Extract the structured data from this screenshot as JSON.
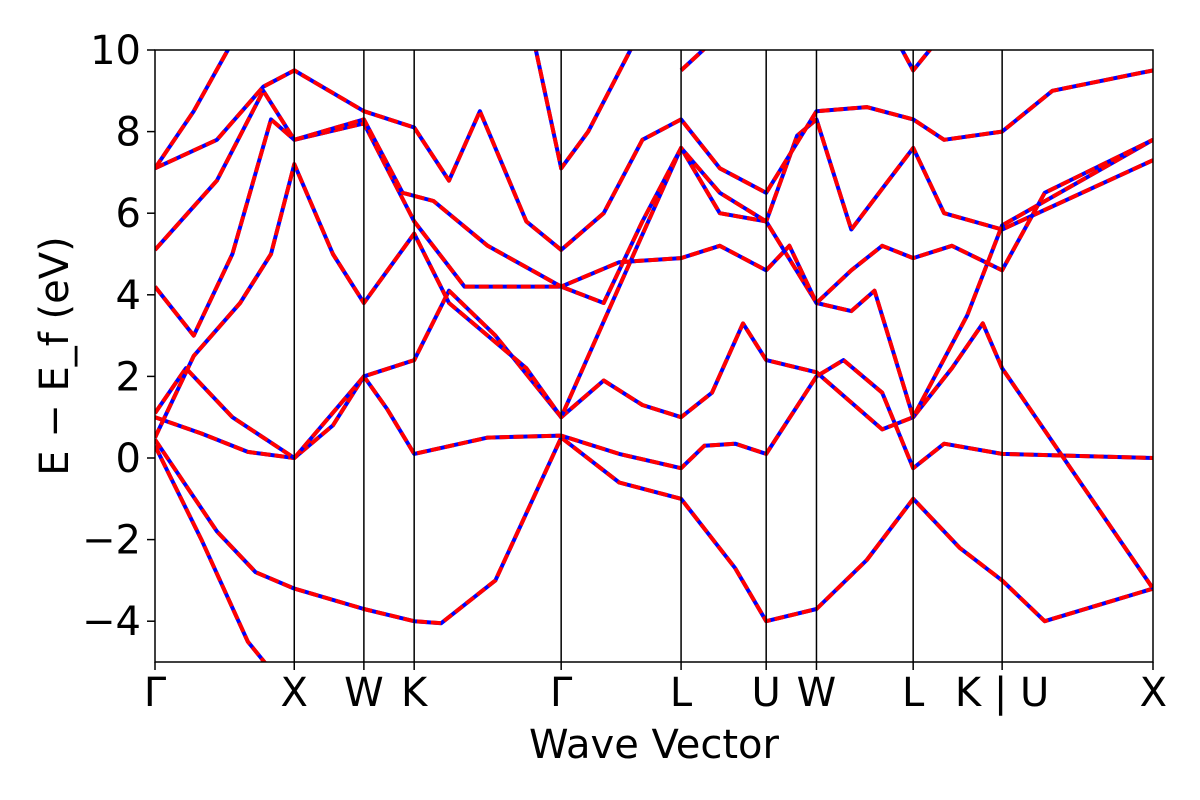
{
  "chart_data": {
    "type": "line",
    "xlabel": "Wave Vector",
    "ylabel": "E − E_f (eV)",
    "ylim": [
      -5,
      10
    ],
    "yticks": [
      -4,
      -2,
      0,
      2,
      4,
      6,
      8,
      10
    ],
    "ytick_labels": [
      "−4",
      "−2",
      "0",
      "2",
      "4",
      "6",
      "8",
      "10"
    ],
    "xlim": [
      0,
      12.9
    ],
    "kpoints": [
      {
        "label": "Γ",
        "x": 0.0
      },
      {
        "label": "X",
        "x": 1.8
      },
      {
        "label": "W",
        "x": 2.7
      },
      {
        "label": "K",
        "x": 3.35
      },
      {
        "label": "Γ",
        "x": 5.25
      },
      {
        "label": "L",
        "x": 6.8
      },
      {
        "label": "U",
        "x": 7.9
      },
      {
        "label": "W",
        "x": 8.55
      },
      {
        "label": "L",
        "x": 9.8
      },
      {
        "label": "K | U",
        "x": 10.95
      },
      {
        "label": "X",
        "x": 12.9
      }
    ],
    "colors": {
      "reference": "#0000ff",
      "overlay": "#ff0000",
      "vlines": "#000000"
    },
    "grid": false,
    "series": [
      {
        "values": [
          [
            0,
            0.3
          ],
          [
            0.6,
            -2.0
          ],
          [
            1.2,
            -4.5
          ],
          [
            1.5,
            -5.2
          ]
        ]
      },
      {
        "values": [
          [
            0,
            0.45
          ],
          [
            0.8,
            -1.8
          ],
          [
            1.3,
            -2.8
          ],
          [
            1.8,
            -3.2
          ],
          [
            2.7,
            -3.7
          ],
          [
            3.35,
            -4.0
          ],
          [
            3.7,
            -4.05
          ],
          [
            4.4,
            -3.0
          ],
          [
            5.25,
            0.5
          ],
          [
            6.0,
            -0.6
          ],
          [
            6.8,
            -1.0
          ],
          [
            7.5,
            -2.7
          ],
          [
            7.9,
            -4.0
          ],
          [
            8.55,
            -3.7
          ],
          [
            9.2,
            -2.5
          ],
          [
            9.8,
            -1.0
          ],
          [
            10.4,
            -2.2
          ],
          [
            10.95,
            -3.0
          ],
          [
            11.5,
            -4.0
          ],
          [
            12.2,
            -3.6
          ],
          [
            12.9,
            -3.2
          ]
        ]
      },
      {
        "values": [
          [
            0,
            1.0
          ],
          [
            0.6,
            0.6
          ],
          [
            1.2,
            0.15
          ],
          [
            1.8,
            0.0
          ],
          [
            2.3,
            0.8
          ],
          [
            2.7,
            2.0
          ],
          [
            3.0,
            1.2
          ],
          [
            3.35,
            0.1
          ],
          [
            4.3,
            0.5
          ],
          [
            5.25,
            0.55
          ],
          [
            6.0,
            0.1
          ],
          [
            6.8,
            -0.25
          ],
          [
            7.1,
            0.3
          ],
          [
            7.5,
            0.35
          ],
          [
            7.9,
            0.1
          ],
          [
            8.55,
            2.0
          ],
          [
            8.9,
            2.4
          ],
          [
            9.4,
            1.6
          ],
          [
            9.8,
            -0.25
          ],
          [
            10.2,
            0.35
          ],
          [
            10.95,
            0.1
          ],
          [
            12.9,
            0.0
          ]
        ]
      },
      {
        "values": [
          [
            0,
            1.1
          ],
          [
            0.4,
            2.2
          ],
          [
            1.0,
            1.0
          ],
          [
            1.8,
            0.0
          ],
          [
            2.7,
            2.0
          ],
          [
            3.35,
            2.4
          ],
          [
            3.8,
            4.1
          ],
          [
            4.4,
            3.0
          ],
          [
            5.25,
            1.0
          ],
          [
            5.8,
            1.9
          ],
          [
            6.3,
            1.3
          ],
          [
            6.8,
            1.0
          ],
          [
            7.2,
            1.6
          ],
          [
            7.6,
            3.3
          ],
          [
            7.9,
            2.4
          ],
          [
            8.55,
            2.1
          ],
          [
            9.4,
            0.7
          ],
          [
            9.8,
            1.0
          ],
          [
            10.3,
            2.2
          ],
          [
            10.7,
            3.3
          ],
          [
            10.95,
            2.2
          ],
          [
            12.9,
            -3.2
          ]
        ]
      },
      {
        "values": [
          [
            0,
            0.5
          ],
          [
            0.5,
            2.5
          ],
          [
            1.1,
            3.8
          ],
          [
            1.5,
            5.0
          ],
          [
            1.8,
            7.2
          ],
          [
            2.3,
            5.0
          ],
          [
            2.7,
            3.8
          ],
          [
            3.35,
            5.5
          ],
          [
            3.8,
            3.8
          ],
          [
            4.8,
            2.2
          ],
          [
            5.25,
            1.0
          ],
          [
            6.0,
            4.2
          ],
          [
            6.8,
            7.6
          ],
          [
            7.3,
            6.0
          ],
          [
            7.9,
            5.8
          ],
          [
            8.3,
            7.9
          ],
          [
            8.55,
            8.3
          ],
          [
            9.0,
            5.6
          ],
          [
            9.8,
            7.6
          ],
          [
            10.2,
            6.0
          ],
          [
            10.95,
            5.6
          ],
          [
            12.9,
            7.3
          ]
        ]
      },
      {
        "values": [
          [
            0,
            4.2
          ],
          [
            0.5,
            3.0
          ],
          [
            1.0,
            5.0
          ],
          [
            1.5,
            8.3
          ],
          [
            1.8,
            7.8
          ],
          [
            2.7,
            8.2
          ],
          [
            3.35,
            5.8
          ],
          [
            4.0,
            4.2
          ],
          [
            5.25,
            4.2
          ],
          [
            5.8,
            3.8
          ],
          [
            6.3,
            5.8
          ],
          [
            6.8,
            7.6
          ],
          [
            7.3,
            6.5
          ],
          [
            7.9,
            5.8
          ],
          [
            8.55,
            3.8
          ],
          [
            9.0,
            3.6
          ],
          [
            9.3,
            4.1
          ],
          [
            9.8,
            1.0
          ],
          [
            10.5,
            3.5
          ],
          [
            10.95,
            5.7
          ],
          [
            12.9,
            7.8
          ]
        ]
      },
      {
        "values": [
          [
            0,
            5.1
          ],
          [
            0.8,
            6.8
          ],
          [
            1.4,
            9.0
          ],
          [
            1.8,
            7.8
          ],
          [
            2.7,
            8.3
          ],
          [
            3.2,
            6.5
          ],
          [
            3.6,
            6.3
          ],
          [
            4.3,
            5.2
          ],
          [
            5.25,
            4.2
          ],
          [
            6.0,
            4.8
          ],
          [
            6.8,
            4.9
          ],
          [
            7.3,
            5.2
          ],
          [
            7.9,
            4.6
          ],
          [
            8.2,
            5.2
          ],
          [
            8.55,
            3.8
          ],
          [
            9.0,
            4.6
          ],
          [
            9.4,
            5.2
          ],
          [
            9.8,
            4.9
          ],
          [
            10.3,
            5.2
          ],
          [
            10.95,
            4.6
          ],
          [
            11.5,
            6.5
          ],
          [
            12.9,
            7.8
          ]
        ]
      },
      {
        "values": [
          [
            0,
            7.1
          ],
          [
            0.8,
            7.8
          ],
          [
            1.4,
            9.1
          ],
          [
            1.8,
            9.5
          ],
          [
            2.7,
            8.5
          ],
          [
            3.35,
            8.1
          ],
          [
            3.8,
            6.8
          ],
          [
            4.2,
            8.5
          ],
          [
            4.8,
            5.8
          ],
          [
            5.25,
            5.1
          ],
          [
            5.8,
            6.0
          ],
          [
            6.3,
            7.8
          ],
          [
            6.8,
            8.3
          ],
          [
            7.3,
            7.1
          ],
          [
            7.9,
            6.5
          ],
          [
            8.55,
            8.5
          ],
          [
            9.2,
            8.6
          ],
          [
            9.8,
            8.3
          ],
          [
            10.2,
            7.8
          ],
          [
            10.95,
            8.0
          ],
          [
            11.6,
            9.0
          ],
          [
            12.9,
            9.5
          ]
        ]
      },
      {
        "values": [
          [
            0,
            7.1
          ],
          [
            0.5,
            8.5
          ],
          [
            1.0,
            10.2
          ]
        ]
      },
      {
        "values": [
          [
            4.9,
            10.2
          ],
          [
            5.25,
            7.1
          ],
          [
            5.6,
            8.0
          ],
          [
            6.2,
            10.2
          ]
        ]
      },
      {
        "values": [
          [
            6.8,
            9.5
          ],
          [
            7.2,
            10.2
          ]
        ]
      },
      {
        "values": [
          [
            9.6,
            10.2
          ],
          [
            9.8,
            9.5
          ],
          [
            10.1,
            10.2
          ]
        ]
      }
    ]
  }
}
